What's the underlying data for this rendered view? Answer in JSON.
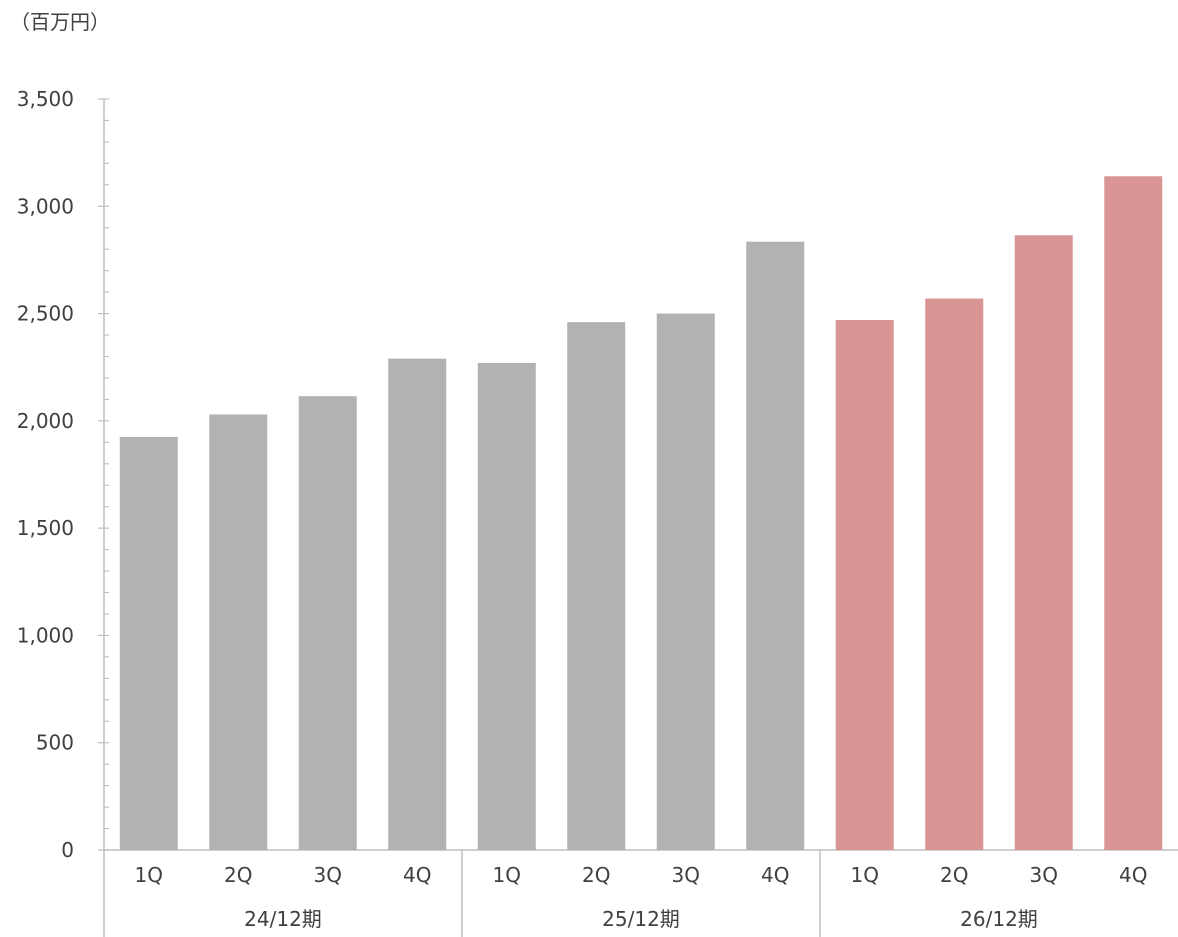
{
  "unit_label": "（百万円）",
  "title": "",
  "chart_data": {
    "type": "bar",
    "title": "",
    "xlabel": "",
    "ylabel": "",
    "ylim": [
      0,
      3500
    ],
    "ytick_step": 500,
    "yminor_step": 100,
    "yticks": [
      "0",
      "500",
      "1,000",
      "1,500",
      "2,000",
      "2,500",
      "3,000",
      "3,500"
    ],
    "grid": false,
    "categories": [
      "1Q",
      "2Q",
      "3Q",
      "4Q",
      "1Q",
      "2Q",
      "3Q",
      "4Q",
      "1Q",
      "2Q",
      "3Q",
      "4Q"
    ],
    "groups": [
      {
        "label": "24/12期",
        "count": 4
      },
      {
        "label": "25/12期",
        "count": 4
      },
      {
        "label": "26/12期",
        "count": 4
      }
    ],
    "values": [
      1925,
      2030,
      2115,
      2290,
      2270,
      2460,
      2500,
      2835,
      2470,
      2570,
      2865,
      3140
    ],
    "colors": [
      "#b2b2b2",
      "#b2b2b2",
      "#b2b2b2",
      "#b2b2b2",
      "#b2b2b2",
      "#b2b2b2",
      "#b2b2b2",
      "#b2b2b2",
      "#d99594",
      "#d99594",
      "#d99594",
      "#d99594"
    ]
  }
}
